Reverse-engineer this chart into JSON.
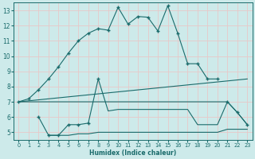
{
  "xlabel": "Humidex (Indice chaleur)",
  "bg_color": "#cdeaea",
  "grid_color": "#e8c8c8",
  "line_color": "#1a6b6b",
  "xlim": [
    -0.5,
    23.5
  ],
  "ylim": [
    4.5,
    13.5
  ],
  "xticks": [
    0,
    1,
    2,
    3,
    4,
    5,
    6,
    7,
    8,
    9,
    10,
    11,
    12,
    13,
    14,
    15,
    16,
    17,
    18,
    19,
    20,
    21,
    22,
    23
  ],
  "yticks": [
    5,
    6,
    7,
    8,
    9,
    10,
    11,
    12,
    13
  ],
  "series1_x": [
    0,
    1,
    2,
    3,
    4,
    5,
    6,
    7,
    8,
    9,
    10,
    11,
    12,
    13,
    14,
    15,
    16,
    17,
    18,
    19,
    20,
    21,
    22,
    23
  ],
  "series1_y": [
    7.0,
    7.2,
    7.8,
    8.5,
    9.3,
    10.2,
    11.0,
    11.5,
    11.8,
    11.7,
    13.2,
    12.1,
    12.6,
    12.55,
    11.65,
    13.3,
    11.5,
    9.5,
    9.5,
    8.5,
    8.5,
    null,
    null,
    null
  ],
  "series1_markers_x": [
    0,
    1,
    2,
    3,
    4,
    5,
    6,
    7,
    8,
    9,
    10,
    11,
    12,
    13,
    14,
    15,
    16,
    17,
    18,
    19,
    20
  ],
  "series1_markers_y": [
    7.0,
    7.2,
    7.8,
    8.5,
    9.3,
    10.2,
    11.0,
    11.5,
    11.8,
    11.7,
    13.2,
    12.1,
    12.6,
    12.55,
    11.65,
    13.3,
    11.5,
    9.5,
    9.5,
    8.5,
    8.5
  ],
  "series2_x": [
    0,
    23
  ],
  "series2_y": [
    7.0,
    8.5
  ],
  "series3_x": [
    0,
    21,
    22,
    23
  ],
  "series3_y": [
    7.0,
    7.0,
    6.3,
    5.5
  ],
  "series4_x": [
    2,
    3,
    4,
    5,
    6,
    7,
    8,
    9,
    10,
    11,
    12,
    13,
    14,
    15,
    16,
    17,
    18,
    19,
    20,
    21,
    22,
    23
  ],
  "series4_y": [
    6.0,
    4.8,
    4.8,
    5.5,
    5.5,
    5.6,
    8.5,
    6.4,
    6.5,
    6.5,
    6.5,
    6.5,
    6.5,
    6.5,
    6.5,
    6.5,
    5.5,
    5.5,
    5.5,
    7.0,
    6.3,
    5.5
  ],
  "series4_markers_x": [
    2,
    3,
    4,
    5,
    6,
    7,
    8,
    21,
    22,
    23
  ],
  "series4_markers_y": [
    6.0,
    4.8,
    4.8,
    5.5,
    5.5,
    5.6,
    8.5,
    7.0,
    6.3,
    5.5
  ],
  "series5_x": [
    3,
    4,
    5,
    6,
    7,
    8,
    9,
    10,
    11,
    12,
    13,
    14,
    15,
    16,
    17,
    18,
    19,
    20,
    21,
    22,
    23
  ],
  "series5_y": [
    4.8,
    4.8,
    4.8,
    4.9,
    4.9,
    5.0,
    5.0,
    5.0,
    5.0,
    5.0,
    5.0,
    5.0,
    5.0,
    5.0,
    5.0,
    5.0,
    5.0,
    5.0,
    5.2,
    5.2,
    5.2
  ]
}
